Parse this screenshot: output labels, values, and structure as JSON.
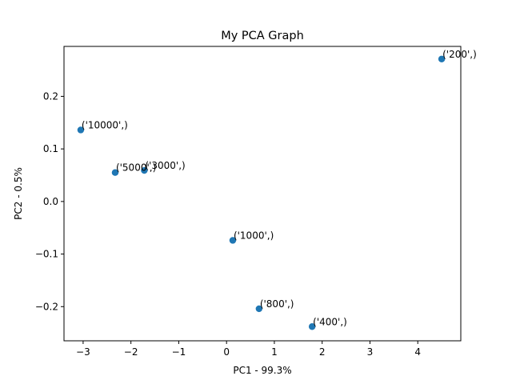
{
  "chart_data": {
    "type": "scatter",
    "title": "My PCA Graph",
    "xlabel": "PC1 - 99.3%",
    "ylabel": "PC2 - 0.5%",
    "xlim": [
      -3.4,
      4.9
    ],
    "ylim": [
      -0.265,
      0.295
    ],
    "x_ticks": [
      -3,
      -2,
      -1,
      0,
      1,
      2,
      3,
      4
    ],
    "x_tick_labels": [
      "−3",
      "−2",
      "−1",
      "0",
      "1",
      "2",
      "3",
      "4"
    ],
    "y_ticks": [
      -0.2,
      -0.1,
      0.0,
      0.1,
      0.2
    ],
    "y_tick_labels": [
      "−0.2",
      "−0.1",
      "0.0",
      "0.1",
      "0.2"
    ],
    "grid": false,
    "marker_color": "#1f77b4",
    "points": [
      {
        "label": "('200',)",
        "x": 4.5,
        "y": 0.271
      },
      {
        "label": "('10000',)",
        "x": -3.05,
        "y": 0.136
      },
      {
        "label": "('5000',)",
        "x": -2.33,
        "y": 0.055
      },
      {
        "label": "('3000',)",
        "x": -1.72,
        "y": 0.059
      },
      {
        "label": "('1000',)",
        "x": 0.13,
        "y": -0.074
      },
      {
        "label": "('800',)",
        "x": 0.68,
        "y": -0.204
      },
      {
        "label": "('400',)",
        "x": 1.79,
        "y": -0.238
      }
    ]
  }
}
